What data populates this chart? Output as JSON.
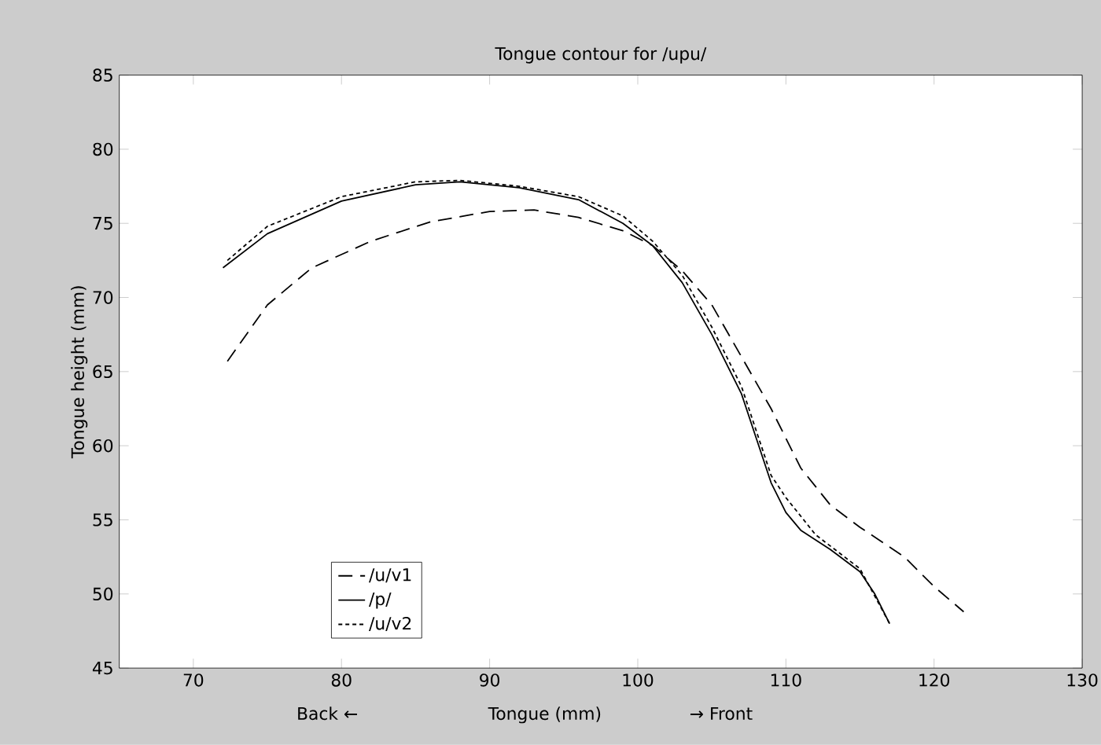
{
  "chart_data": {
    "type": "line",
    "title": "Tongue contour for /upu/",
    "xlabel": "Tongue (mm)",
    "ylabel": "Tongue height (mm)",
    "annotations": [
      "Back ←",
      "→ Front"
    ],
    "xlim": [
      65,
      130
    ],
    "xticks": [
      70,
      80,
      90,
      100,
      110,
      120,
      130
    ],
    "ylim": [
      45,
      85
    ],
    "yticks": [
      45,
      50,
      55,
      60,
      65,
      70,
      75,
      80,
      85
    ],
    "grid": false,
    "legend": "bottom left",
    "series": [
      {
        "name": "/u/v1",
        "color": "#000000",
        "line_style": "dashed",
        "x": [
          72.3,
          75,
          78,
          82,
          86,
          90,
          93,
          96,
          99,
          101,
          103,
          105,
          107,
          109,
          111,
          113,
          115,
          118,
          120,
          122
        ],
        "values": [
          65.7,
          69.5,
          72,
          73.8,
          75.1,
          75.8,
          75.9,
          75.4,
          74.5,
          73.5,
          71.8,
          69.5,
          66,
          62.5,
          58.5,
          56,
          54.5,
          52.5,
          50.5,
          48.8
        ]
      },
      {
        "name": "/p/",
        "color": "#000000",
        "line_style": "solid",
        "x": [
          72,
          75,
          80,
          85,
          88,
          92,
          96,
          99,
          101,
          103,
          105,
          107,
          108,
          109,
          110,
          111,
          113,
          115,
          116,
          117
        ],
        "values": [
          72,
          74.3,
          76.5,
          77.6,
          77.8,
          77.4,
          76.6,
          75,
          73.5,
          71,
          67.5,
          63.5,
          60.5,
          57.5,
          55.5,
          54.3,
          53,
          51.5,
          50,
          48
        ]
      },
      {
        "name": "/u/v2",
        "color": "#000000",
        "line_style": "dotted",
        "x": [
          72.3,
          75,
          80,
          85,
          88,
          92,
          96,
          99,
          101,
          103,
          105,
          107,
          109,
          110,
          112,
          115,
          117
        ],
        "values": [
          72.5,
          74.8,
          76.8,
          77.8,
          77.9,
          77.5,
          76.8,
          75.5,
          73.8,
          71.5,
          68,
          64,
          58,
          56.5,
          54,
          51.7,
          48
        ]
      }
    ]
  }
}
